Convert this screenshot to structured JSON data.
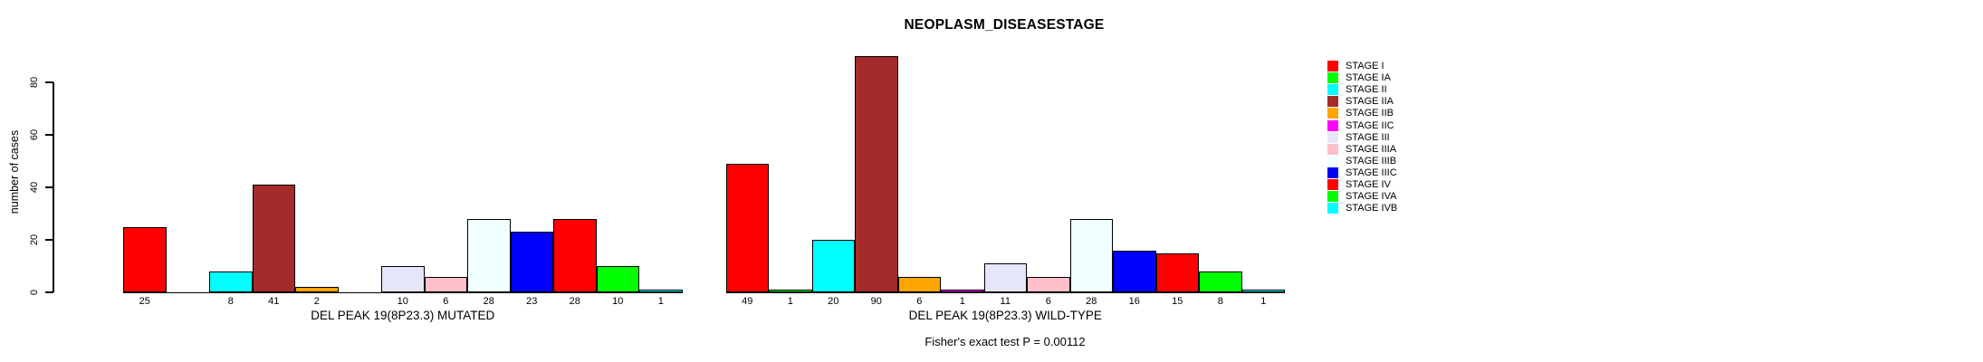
{
  "title": "NEOPLASM_DISEASESTAGE",
  "footer": "Fisher's exact test P = 0.00112",
  "y_axis": {
    "label": "number of cases",
    "ticks": [
      0,
      20,
      40,
      60,
      80
    ]
  },
  "legend": {
    "items": [
      {
        "label": "STAGE I",
        "color": "#FF0000"
      },
      {
        "label": "STAGE IA",
        "color": "#00FF00"
      },
      {
        "label": "STAGE II",
        "color": "#00FFFF"
      },
      {
        "label": "STAGE IIA",
        "color": "#A52A2A"
      },
      {
        "label": "STAGE IIB",
        "color": "#FFA500"
      },
      {
        "label": "STAGE IIC",
        "color": "#FF00FF"
      },
      {
        "label": "STAGE III",
        "color": "#E6E6FA"
      },
      {
        "label": "STAGE IIIA",
        "color": "#FFC0CB"
      },
      {
        "label": "STAGE IIIB",
        "color": "#F0FFFF"
      },
      {
        "label": "STAGE IIIC",
        "color": "#0000FF"
      },
      {
        "label": "STAGE IV",
        "color": "#FF0000"
      },
      {
        "label": "STAGE IVA",
        "color": "#00FF00"
      },
      {
        "label": "STAGE IVB",
        "color": "#00FFFF"
      }
    ]
  },
  "chart_data": {
    "type": "bar",
    "title": "NEOPLASM_DISEASESTAGE",
    "xlabel": "",
    "ylabel": "number of cases",
    "ylim": [
      0,
      90
    ],
    "yticks": [
      0,
      20,
      40,
      60,
      80
    ],
    "grid": false,
    "legend_position": "right",
    "categories": [
      "STAGE I",
      "STAGE IA",
      "STAGE II",
      "STAGE IIA",
      "STAGE IIB",
      "STAGE IIC",
      "STAGE III",
      "STAGE IIIA",
      "STAGE IIIB",
      "STAGE IIIC",
      "STAGE IV",
      "STAGE IVA",
      "STAGE IVB"
    ],
    "colors": [
      "#FF0000",
      "#00FF00",
      "#00FFFF",
      "#A52A2A",
      "#FFA500",
      "#FF00FF",
      "#E6E6FA",
      "#FFC0CB",
      "#F0FFFF",
      "#0000FF",
      "#FF0000",
      "#00FF00",
      "#00FFFF"
    ],
    "groups": [
      {
        "label": "DEL PEAK 19(8P23.3) MUTATED",
        "values": [
          25,
          0,
          8,
          41,
          2,
          0,
          10,
          6,
          28,
          23,
          28,
          10,
          1
        ]
      },
      {
        "label": "DEL PEAK 19(8P23.3) WILD-TYPE",
        "values": [
          49,
          1,
          20,
          90,
          6,
          1,
          11,
          6,
          28,
          16,
          15,
          8,
          1
        ]
      }
    ],
    "annotation": "Fisher's exact test P = 0.00112"
  }
}
